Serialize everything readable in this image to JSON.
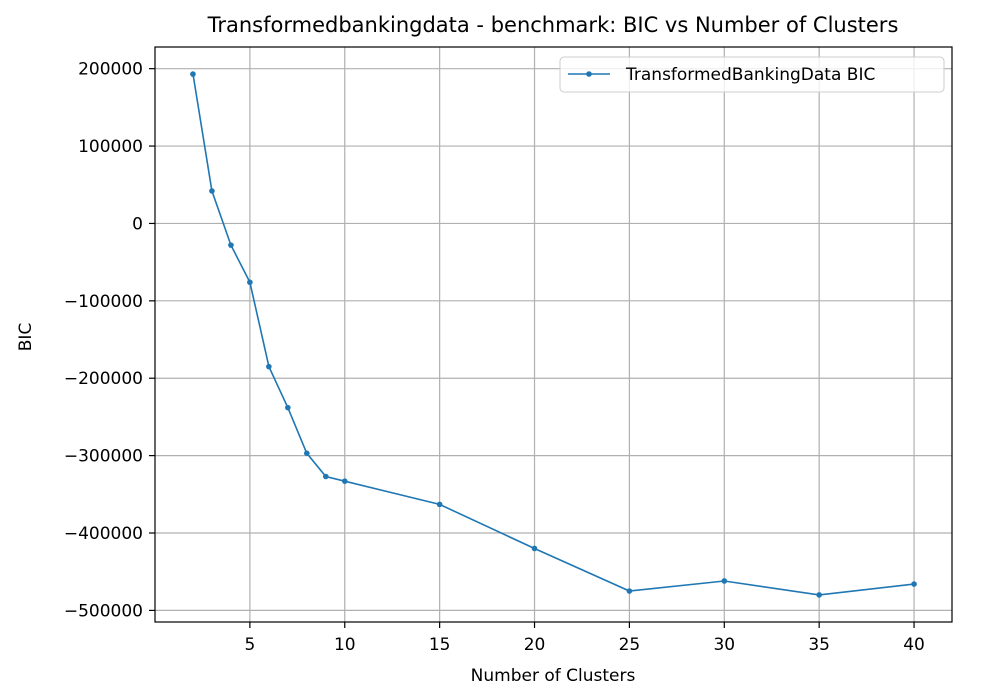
{
  "chart_data": {
    "type": "line",
    "title": "Transformedbankingdata - benchmark: BIC vs Number of Clusters",
    "xlabel": "Number of Clusters",
    "ylabel": "BIC",
    "x_ticks": [
      "5",
      "10",
      "15",
      "20",
      "25",
      "30",
      "35",
      "40"
    ],
    "y_ticks": [
      "200000",
      "100000",
      "0",
      "−100000",
      "−200000",
      "−300000",
      "−400000",
      "−500000"
    ],
    "xlim": [
      0,
      42
    ],
    "ylim": [
      -515000,
      228000
    ],
    "grid": true,
    "legend_position": "top-right",
    "series": [
      {
        "name": "TransformedBankingData BIC",
        "color": "#1f77b4",
        "marker": "circle",
        "x": [
          2,
          3,
          4,
          5,
          6,
          7,
          8,
          9,
          10,
          15,
          20,
          25,
          30,
          35,
          40
        ],
        "y": [
          193000,
          42000,
          -28000,
          -76000,
          -185000,
          -238000,
          -297000,
          -327000,
          -333000,
          -363000,
          -420000,
          -475000,
          -462000,
          -480000,
          -466000
        ]
      }
    ]
  }
}
